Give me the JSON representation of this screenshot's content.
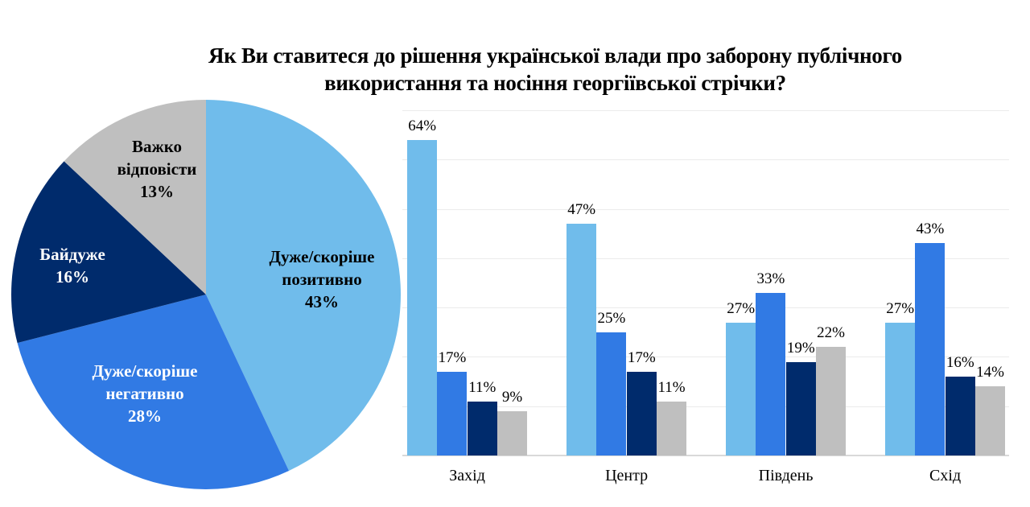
{
  "title": {
    "line1": "Як Ви ставитеся до рішення української влади про заборону публічного",
    "line2": "використання та носіння георгіївської стрічки?"
  },
  "colors": {
    "positive": "#70BCEB",
    "negative": "#317AE4",
    "indifferent": "#002B6C",
    "hard_to_say": "#BFBFBF"
  },
  "pie": {
    "slices": [
      {
        "key": "positive",
        "line1": "Дуже/скоріше",
        "line2": "позитивно",
        "pct": "43%",
        "value": 43,
        "color": "#70BCEB",
        "text_color": "#000000"
      },
      {
        "key": "negative",
        "line1": "Дуже/скоріше",
        "line2": "негативно",
        "pct": "28%",
        "value": 28,
        "color": "#317AE4",
        "text_color": "#FFFFFF"
      },
      {
        "key": "indifferent",
        "line1": "Байдуже",
        "line2": "",
        "pct": "16%",
        "value": 16,
        "color": "#002B6C",
        "text_color": "#FFFFFF"
      },
      {
        "key": "hard_to_say",
        "line1": "Важко",
        "line2": "відповісти",
        "pct": "13%",
        "value": 13,
        "color": "#BFBFBF",
        "text_color": "#000000"
      }
    ]
  },
  "bars": {
    "categories": [
      "Захід",
      "Центр",
      "Південь",
      "Схід"
    ],
    "series": [
      {
        "key": "positive",
        "values": [
          64,
          47,
          27,
          27
        ],
        "labels": [
          "64%",
          "47%",
          "27%",
          "27%"
        ]
      },
      {
        "key": "negative",
        "values": [
          17,
          25,
          33,
          43
        ],
        "labels": [
          "17%",
          "25%",
          "33%",
          "43%"
        ]
      },
      {
        "key": "indifferent",
        "values": [
          11,
          17,
          19,
          16
        ],
        "labels": [
          "11%",
          "17%",
          "19%",
          "16%"
        ]
      },
      {
        "key": "hard_to_say",
        "values": [
          9,
          11,
          22,
          14
        ],
        "labels": [
          "9%",
          "11%",
          "22%",
          "14%"
        ]
      }
    ]
  },
  "chart_data": [
    {
      "type": "pie",
      "title": "Як Ви ставитеся до рішення української влади про заборону публічного використання та носіння георгіївської стрічки?",
      "categories": [
        "Дуже/скоріше позитивно",
        "Дуже/скоріше негативно",
        "Байдуже",
        "Важко відповісти"
      ],
      "values": [
        43,
        28,
        16,
        13
      ],
      "colors": [
        "#70BCEB",
        "#317AE4",
        "#002B6C",
        "#BFBFBF"
      ],
      "unit": "%"
    },
    {
      "type": "bar",
      "title": "Як Ви ставитеся до рішення української влади про заборону публічного використання та носіння георгіївської стрічки?",
      "categories": [
        "Захід",
        "Центр",
        "Південь",
        "Схід"
      ],
      "series": [
        {
          "name": "Дуже/скоріше позитивно",
          "values": [
            64,
            47,
            27,
            27
          ],
          "color": "#70BCEB"
        },
        {
          "name": "Дуже/скоріше негативно",
          "values": [
            17,
            25,
            33,
            43
          ],
          "color": "#317AE4"
        },
        {
          "name": "Байдуже",
          "values": [
            11,
            17,
            19,
            16
          ],
          "color": "#002B6C"
        },
        {
          "name": "Важко відповісти",
          "values": [
            9,
            11,
            22,
            14
          ],
          "color": "#BFBFBF"
        }
      ],
      "xlabel": "",
      "ylabel": "",
      "ylim": [
        0,
        70
      ],
      "grid": true,
      "y_axis_visible": false,
      "data_labels": true,
      "unit": "%"
    }
  ]
}
